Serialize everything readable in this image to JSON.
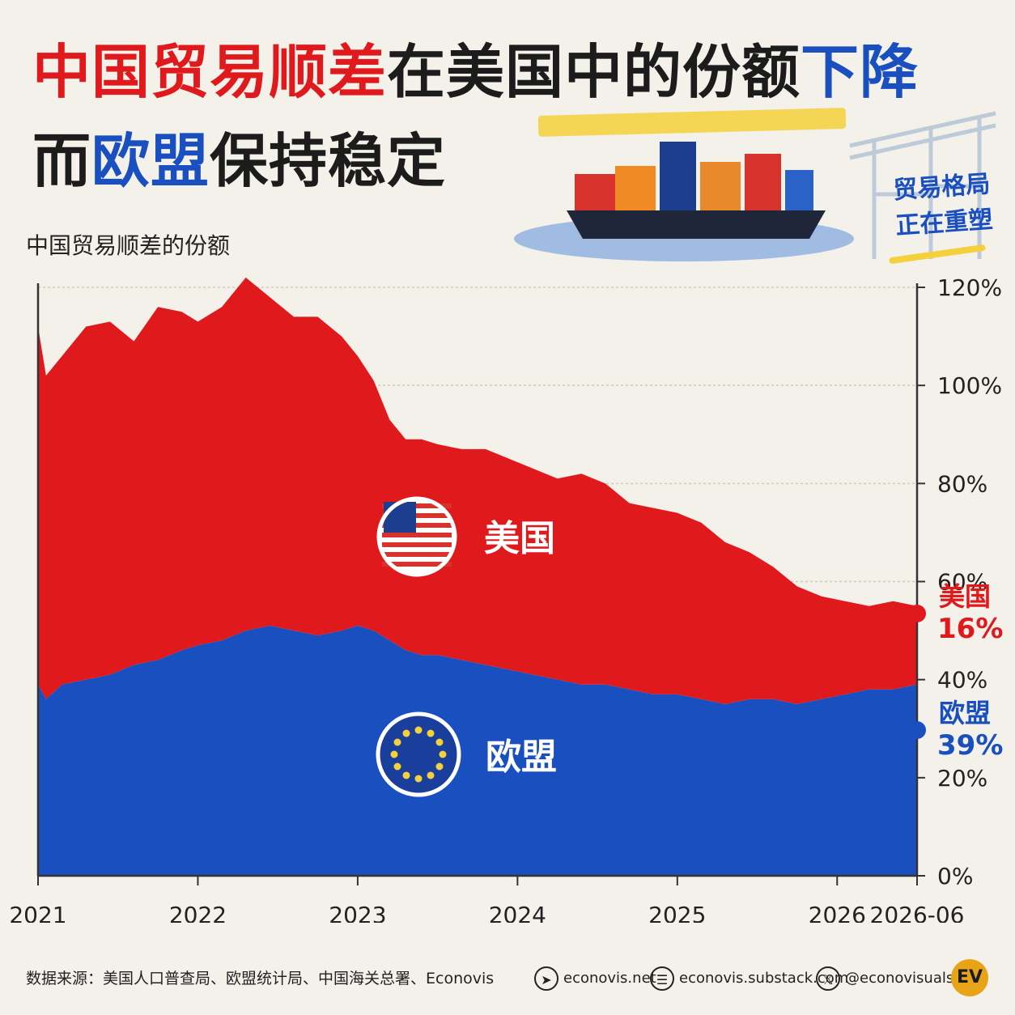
{
  "title": {
    "line1_part1": "中国贸易顺差",
    "line1_part2": "在美国中的份额",
    "line1_part3": "下降",
    "line2_part1": "而",
    "line2_part2": "欧盟",
    "line2_part3": "保持稳定"
  },
  "badge": {
    "line1": "贸易格局",
    "line2": "正在重塑"
  },
  "subtitle": "中国贸易顺差的份额",
  "colors": {
    "us": "#e0191c",
    "eu": "#1a4fc0",
    "background": "#f3f1ea"
  },
  "chart_data": {
    "type": "area",
    "stacked": true,
    "x": [
      2021.0,
      2021.05,
      2021.15,
      2021.3,
      2021.45,
      2021.6,
      2021.75,
      2021.9,
      2022.0,
      2022.15,
      2022.3,
      2022.45,
      2022.6,
      2022.75,
      2022.9,
      2023.0,
      2023.1,
      2023.2,
      2023.3,
      2023.4,
      2023.5,
      2023.65,
      2023.8,
      2023.95,
      2024.1,
      2024.25,
      2024.4,
      2024.55,
      2024.7,
      2024.85,
      2025.0,
      2025.15,
      2025.3,
      2025.45,
      2025.6,
      2025.75,
      2025.9,
      2026.05,
      2026.2,
      2026.35,
      2026.5
    ],
    "series": [
      {
        "name": "欧盟",
        "values": [
          39,
          36,
          39,
          40,
          41,
          43,
          44,
          46,
          47,
          48,
          50,
          51,
          50,
          49,
          50,
          51,
          50,
          48,
          46,
          45,
          45,
          44,
          43,
          42,
          41,
          40,
          39,
          39,
          38,
          37,
          37,
          36,
          35,
          36,
          36,
          35,
          36,
          37,
          38,
          38,
          39
        ]
      },
      {
        "name": "美国",
        "values": [
          73,
          66,
          67,
          72,
          72,
          66,
          72,
          69,
          66,
          68,
          72,
          67,
          64,
          65,
          60,
          55,
          51,
          45,
          43,
          44,
          43,
          43,
          44,
          43,
          42,
          41,
          43,
          41,
          38,
          38,
          37,
          36,
          33,
          30,
          27,
          24,
          21,
          19,
          17,
          18,
          16
        ]
      }
    ],
    "xticks": [
      "2021",
      "2022",
      "2023",
      "2024",
      "2025",
      "2026",
      "2026-06"
    ],
    "yticks": [
      "0%",
      "20%",
      "40%",
      "60%",
      "80%",
      "100%",
      "120%"
    ],
    "ylim": [
      0,
      120
    ],
    "area_labels": {
      "us": "美国",
      "eu": "欧盟"
    },
    "end_labels": [
      {
        "name": "美国",
        "value": "16%"
      },
      {
        "name": "欧盟",
        "value": "39%"
      }
    ]
  },
  "footer": {
    "source": "数据来源：美国人口普查局、欧盟统计局、中国海关总署、Econovis",
    "website": "econovis.net",
    "substack": "econovis.substack.com",
    "twitter": "@econovisuals",
    "logo": "EV",
    "icons": [
      "cursor-icon",
      "newsletter-icon",
      "x-logo-icon"
    ]
  }
}
